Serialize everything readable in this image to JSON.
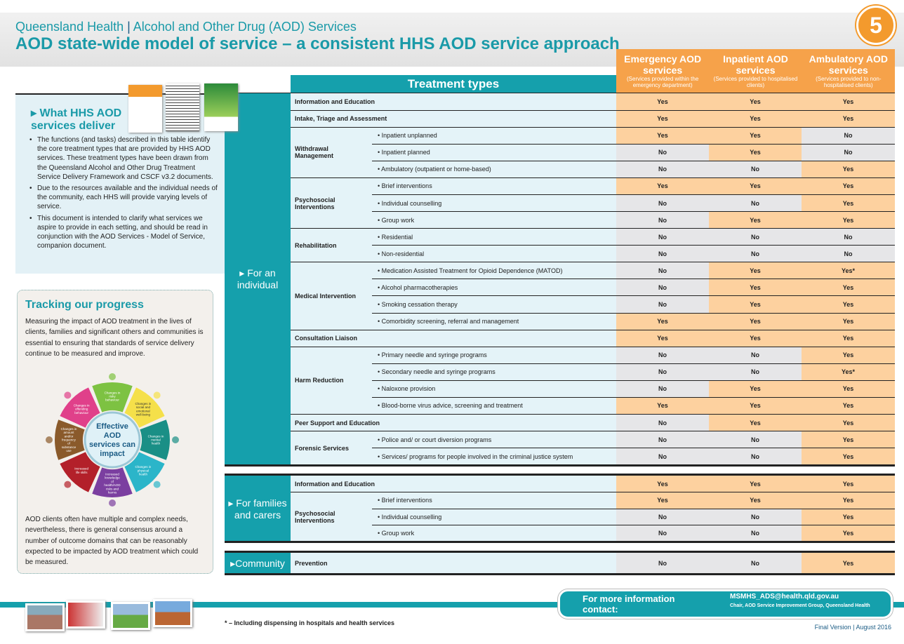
{
  "header": {
    "org": "Queensland Health",
    "separator": " | ",
    "division": "Alcohol and Other Drug (AOD) Services",
    "title": "AOD state-wide model of service – a consistent HHS AOD service approach",
    "page_number": "5"
  },
  "columns": [
    {
      "title": "Emergency AOD services",
      "subtitle": "(Services provided within the emergency department)"
    },
    {
      "title": "Inpatient AOD services",
      "subtitle": "(Services provided to hospitalised clients)"
    },
    {
      "title": "Ambulatory AOD services",
      "subtitle": "(Services provided to non-hospitalised clients)"
    }
  ],
  "table_title": "Treatment types",
  "sections": [
    {
      "label": "▸ For an individual",
      "rows": [
        {
          "category": "Information and Education",
          "items": [
            {
              "text": "",
              "values": [
                "Yes",
                "Yes",
                "Yes"
              ]
            }
          ]
        },
        {
          "category": "Intake, Triage and Assessment",
          "items": [
            {
              "text": "",
              "values": [
                "Yes",
                "Yes",
                "Yes"
              ]
            }
          ]
        },
        {
          "category": "Withdrawal Management",
          "items": [
            {
              "text": "Inpatient unplanned",
              "values": [
                "Yes",
                "Yes",
                "No"
              ]
            },
            {
              "text": "Inpatient planned",
              "values": [
                "No",
                "Yes",
                "No"
              ]
            },
            {
              "text": "Ambulatory (outpatient or home-based)",
              "values": [
                "No",
                "No",
                "Yes"
              ]
            }
          ]
        },
        {
          "category": "Psychosocial Interventions",
          "items": [
            {
              "text": "Brief interventions",
              "values": [
                "Yes",
                "Yes",
                "Yes"
              ]
            },
            {
              "text": "Individual counselling",
              "values": [
                "No",
                "No",
                "Yes"
              ]
            },
            {
              "text": "Group work",
              "values": [
                "No",
                "Yes",
                "Yes"
              ]
            }
          ]
        },
        {
          "category": "Rehabilitation",
          "items": [
            {
              "text": "Residential",
              "values": [
                "No",
                "No",
                "No"
              ]
            },
            {
              "text": "Non-residential",
              "values": [
                "No",
                "No",
                "No"
              ]
            }
          ]
        },
        {
          "category": "Medical Intervention",
          "items": [
            {
              "text": "Medication Assisted Treatment for Opioid Dependence (MATOD)",
              "values": [
                "No",
                "Yes",
                "Yes*"
              ]
            },
            {
              "text": "Alcohol pharmacotherapies",
              "values": [
                "No",
                "Yes",
                "Yes"
              ]
            },
            {
              "text": "Smoking cessation therapy",
              "values": [
                "No",
                "Yes",
                "Yes"
              ]
            },
            {
              "text": "Comorbidity screening, referral and management",
              "values": [
                "Yes",
                "Yes",
                "Yes"
              ]
            }
          ]
        },
        {
          "category": "Consultation Liaison",
          "items": [
            {
              "text": "",
              "values": [
                "Yes",
                "Yes",
                "Yes"
              ]
            }
          ]
        },
        {
          "category": "Harm Reduction",
          "items": [
            {
              "text": "Primary needle and syringe programs",
              "values": [
                "No",
                "No",
                "Yes"
              ]
            },
            {
              "text": "Secondary needle and syringe programs",
              "values": [
                "No",
                "No",
                "Yes*"
              ]
            },
            {
              "text": "Naloxone provision",
              "values": [
                "No",
                "Yes",
                "Yes"
              ]
            },
            {
              "text": "Blood-borne virus advice, screening and treatment",
              "values": [
                "Yes",
                "Yes",
                "Yes"
              ]
            }
          ]
        },
        {
          "category": "Peer Support and Education",
          "items": [
            {
              "text": "",
              "values": [
                "No",
                "Yes",
                "Yes"
              ]
            }
          ]
        },
        {
          "category": "Forensic Services",
          "items": [
            {
              "text": "Police and/ or court diversion programs",
              "values": [
                "No",
                "No",
                "Yes"
              ]
            },
            {
              "text": "Services/ programs for people involved in the criminal justice system",
              "values": [
                "No",
                "No",
                "Yes"
              ]
            }
          ]
        }
      ]
    },
    {
      "label": "▸ For families and carers",
      "rows": [
        {
          "category": "Information and Education",
          "items": [
            {
              "text": "",
              "values": [
                "Yes",
                "Yes",
                "Yes"
              ]
            }
          ]
        },
        {
          "category": "Psychosocial Interventions",
          "items": [
            {
              "text": "Brief interventions",
              "values": [
                "Yes",
                "Yes",
                "Yes"
              ]
            },
            {
              "text": "Individual counselling",
              "values": [
                "No",
                "No",
                "Yes"
              ]
            },
            {
              "text": "Group work",
              "values": [
                "No",
                "No",
                "Yes"
              ]
            }
          ]
        }
      ]
    },
    {
      "label": "▸Community",
      "rows": [
        {
          "category": "Prevention",
          "items": [
            {
              "text": "",
              "values": [
                "No",
                "No",
                "Yes"
              ]
            }
          ]
        }
      ]
    }
  ],
  "what": {
    "heading": "▸ What HHS AOD services deliver",
    "bullets": [
      "The functions (and tasks) described in this table identify the core treatment types that are provided by HHS AOD services. These treatment types have been drawn from the Queensland Alcohol and Other Drug Treatment Service Delivery Framework and CSCF v3.2 documents.",
      "Due to the resources available and the individual needs of the community, each HHS will provide varying levels of service.",
      "This document is intended to clarify what services we aspire to provide in each setting, and should be read in conjunction with the AOD Services - Model of Service, companion document."
    ]
  },
  "tracking": {
    "heading": "Tracking our progress",
    "intro": "Measuring the impact of AOD treatment in the lives of clients, families and significant others and communities is essential to ensuring that standards of service delivery continue to be measured and improve.",
    "outro": "AOD clients often have multiple and complex needs, nevertheless, there is general consensus around a number of outcome domains that can be reasonably expected to be impacted by AOD treatment which could be measured.",
    "wheel_center": "Effective AOD services can impact",
    "wheel_segments": [
      {
        "label": "Changes in risky behaviour",
        "color": "#7dc242"
      },
      {
        "label": "Changes in social and emotional well-being",
        "color": "#f5e04a"
      },
      {
        "label": "Changes in mental health",
        "color": "#1a8f86"
      },
      {
        "label": "Changes in physical health",
        "color": "#2bb5c9"
      },
      {
        "label": "Increased knowledge of health/AOD risks and harms",
        "color": "#7b3fa0"
      },
      {
        "label": "Increased life skills",
        "color": "#b3202a"
      },
      {
        "label": "Changes in amount and/or frequency of substance use",
        "color": "#8a5a2b"
      },
      {
        "label": "Changes in offending behaviour",
        "color": "#e0408a"
      }
    ]
  },
  "colors": {
    "teal": "#15a0ac",
    "orange": "#f6a24a",
    "yes_cell": "#fdd19f",
    "no_cell": "#e6e6e8",
    "dark_blue": "#1b5c85"
  },
  "footer": {
    "footnote": "* – Including dispensing in hospitals and health services",
    "contact_label": "For more information contact:",
    "email": "MSMHS_ADS@health.qld.gov.au",
    "contact_role": "Chair, AOD Service Improvement Group, Queensland Health",
    "version": "Final Version | August 2016"
  }
}
